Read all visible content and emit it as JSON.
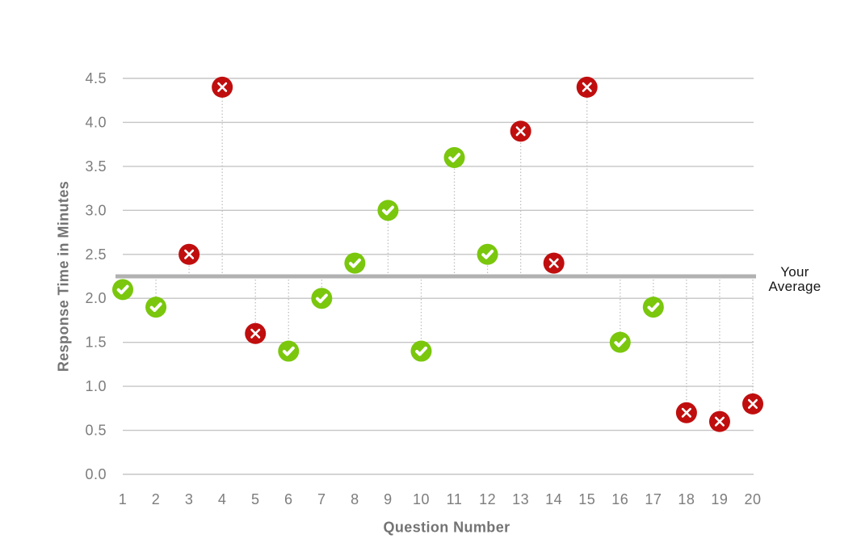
{
  "chart_data": {
    "type": "scatter",
    "title": "",
    "xlabel": "Question Number",
    "ylabel": "Response Time in Minutes",
    "ylim": [
      0,
      4.5
    ],
    "ytick_step": 0.5,
    "yticks": [
      "0.0",
      "0.5",
      "1.0",
      "1.5",
      "2.0",
      "2.5",
      "3.0",
      "3.5",
      "4.0",
      "4.5"
    ],
    "grid": true,
    "legend_position": "none",
    "points": [
      {
        "question": "1",
        "minutes": 2.1,
        "status": "correct"
      },
      {
        "question": "2",
        "minutes": 1.9,
        "status": "correct"
      },
      {
        "question": "3",
        "minutes": 2.5,
        "status": "incorrect"
      },
      {
        "question": "4",
        "minutes": 4.4,
        "status": "incorrect"
      },
      {
        "question": "5",
        "minutes": 1.6,
        "status": "incorrect"
      },
      {
        "question": "6",
        "minutes": 1.4,
        "status": "correct"
      },
      {
        "question": "7",
        "minutes": 2.0,
        "status": "correct"
      },
      {
        "question": "8",
        "minutes": 2.4,
        "status": "correct"
      },
      {
        "question": "9",
        "minutes": 3.0,
        "status": "correct"
      },
      {
        "question": "10",
        "minutes": 1.4,
        "status": "correct"
      },
      {
        "question": "11",
        "minutes": 3.6,
        "status": "correct"
      },
      {
        "question": "12",
        "minutes": 2.5,
        "status": "correct"
      },
      {
        "question": "13",
        "minutes": 3.9,
        "status": "incorrect"
      },
      {
        "question": "14",
        "minutes": 2.4,
        "status": "incorrect"
      },
      {
        "question": "15",
        "minutes": 4.4,
        "status": "incorrect"
      },
      {
        "question": "16",
        "minutes": 1.5,
        "status": "correct"
      },
      {
        "question": "17",
        "minutes": 1.9,
        "status": "correct"
      },
      {
        "question": "18",
        "minutes": 0.7,
        "status": "incorrect"
      },
      {
        "question": "19",
        "minutes": 0.6,
        "status": "incorrect"
      },
      {
        "question": "20",
        "minutes": 0.8,
        "status": "incorrect"
      }
    ],
    "average": {
      "value": 2.25,
      "label": "Your Average",
      "label_line1": "Your",
      "label_line2": "Average"
    },
    "colors": {
      "correct": "#7ac70d",
      "incorrect": "#c00e0e",
      "marker_glyph": "#ffffff",
      "average_line": "#b1b1b1",
      "gridline": "#c5c5c5",
      "stem": "#bcbcbc",
      "tick_text": "#7d7d7d",
      "axis_title_text": "#737373",
      "annotation_text": "#161616",
      "background": "#ffffff"
    }
  }
}
